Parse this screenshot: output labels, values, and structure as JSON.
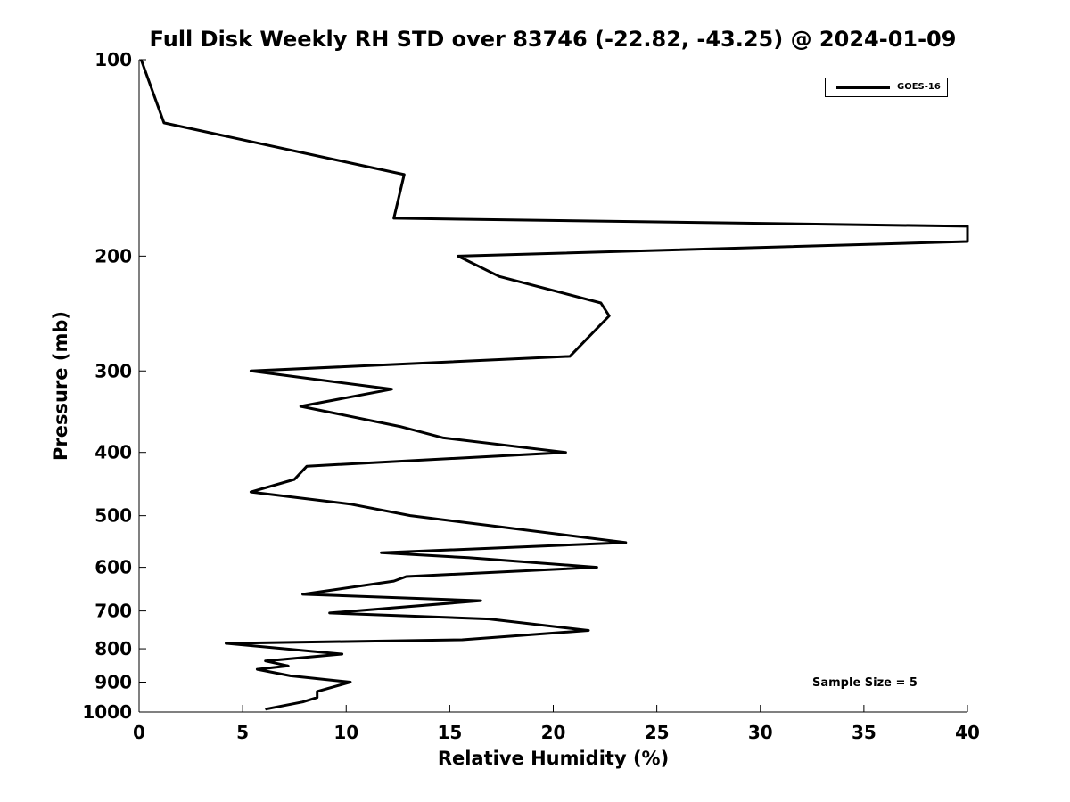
{
  "chart_data": {
    "type": "line",
    "title": "Full Disk Weekly RH STD over 83746 (-22.82, -43.25) @ 2024-01-09",
    "xlabel": "Relative Humidity (%)",
    "ylabel": "Pressure (mb)",
    "xlim": [
      0,
      40
    ],
    "ylim": [
      100,
      1000
    ],
    "y_scale": "log",
    "y_inverted": true,
    "x_ticks": [
      "0",
      "5",
      "10",
      "15",
      "20",
      "25",
      "30",
      "35",
      "40"
    ],
    "y_ticks": [
      "100",
      "200",
      "300",
      "400",
      "500",
      "600",
      "700",
      "800",
      "900",
      "1000"
    ],
    "grid": false,
    "legend_position": "top-right",
    "annotation": "Sample Size = 5",
    "series": [
      {
        "name": "GOES-16",
        "color": "#000000",
        "points": [
          [
            0.1,
            100
          ],
          [
            1.2,
            125
          ],
          [
            12.8,
            150
          ],
          [
            12.3,
            175
          ],
          [
            40.0,
            180
          ],
          [
            40.0,
            190
          ],
          [
            15.4,
            200
          ],
          [
            17.4,
            215
          ],
          [
            22.3,
            236
          ],
          [
            22.7,
            247
          ],
          [
            20.8,
            285
          ],
          [
            5.4,
            300
          ],
          [
            12.2,
            320
          ],
          [
            7.8,
            340
          ],
          [
            12.6,
            365
          ],
          [
            14.7,
            380
          ],
          [
            20.6,
            400
          ],
          [
            8.1,
            420
          ],
          [
            7.5,
            440
          ],
          [
            5.4,
            460
          ],
          [
            10.2,
            480
          ],
          [
            13.1,
            500
          ],
          [
            17.4,
            520
          ],
          [
            23.5,
            550
          ],
          [
            11.7,
            570
          ],
          [
            15.9,
            580
          ],
          [
            22.1,
            600
          ],
          [
            12.9,
            620
          ],
          [
            12.3,
            630
          ],
          [
            7.9,
            660
          ],
          [
            16.5,
            675
          ],
          [
            9.2,
            705
          ],
          [
            16.9,
            720
          ],
          [
            21.7,
            750
          ],
          [
            15.6,
            775
          ],
          [
            4.2,
            785
          ],
          [
            9.8,
            815
          ],
          [
            6.1,
            835
          ],
          [
            7.2,
            850
          ],
          [
            5.7,
            860
          ],
          [
            7.3,
            880
          ],
          [
            10.2,
            900
          ],
          [
            8.6,
            930
          ],
          [
            8.6,
            950
          ],
          [
            7.9,
            965
          ],
          [
            6.1,
            990
          ]
        ]
      }
    ]
  }
}
